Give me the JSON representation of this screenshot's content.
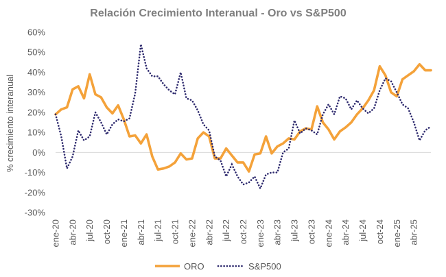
{
  "chart_data": {
    "type": "line",
    "title": "Relación Crecimiento Interanual - Oro vs S&P500",
    "xlabel": "",
    "ylabel": "% crecimiento interanual",
    "ylim": [
      -30,
      60
    ],
    "yticks": [
      "-30%",
      "-20%",
      "-10%",
      "0%",
      "10%",
      "20%",
      "30%",
      "40%",
      "50%",
      "60%"
    ],
    "ytick_values": [
      -30,
      -20,
      -10,
      0,
      10,
      20,
      30,
      40,
      50,
      60
    ],
    "xticks": [
      "ene-20",
      "abr-20",
      "jul-20",
      "oct-20",
      "ene-21",
      "abr-21",
      "jul-21",
      "oct-21",
      "ene-22",
      "abr-22",
      "jul-22",
      "oct-22",
      "ene-23",
      "abr-23",
      "jul-23",
      "oct-23",
      "ene-24",
      "abr-24",
      "jul-24",
      "oct-24",
      "ene-25",
      "abr-25"
    ],
    "legend_position": "bottom",
    "grid": false,
    "series": [
      {
        "name": "ORO",
        "color": "#f4a23a",
        "style": "solid",
        "values": [
          19,
          21.5,
          22.5,
          31.5,
          33,
          27,
          39,
          29,
          27.5,
          22.5,
          19.5,
          23.5,
          16.5,
          8,
          8.5,
          4.5,
          9,
          -2,
          -8.5,
          -8,
          -7,
          -5,
          -0.5,
          -3.5,
          -3,
          7,
          10,
          8,
          -3,
          -3,
          2,
          -1.5,
          -5,
          -5,
          -9.5,
          -1,
          -0.5,
          8,
          -0.5,
          3,
          4.5,
          7,
          6.5,
          10.5,
          12,
          11.5,
          23,
          15,
          11.5,
          6.5,
          10.5,
          12.5,
          15,
          19,
          22,
          26,
          31,
          43,
          38.5,
          30,
          28,
          36.5,
          38.5,
          40.5,
          44,
          41,
          41
        ]
      },
      {
        "name": "S&P500",
        "color": "#2e2a6e",
        "style": "dotted",
        "values": [
          19,
          8,
          -8,
          -2,
          11,
          6,
          8,
          20,
          15,
          9,
          14,
          16.5,
          15.5,
          17,
          29.5,
          54,
          42,
          38,
          38,
          34,
          31,
          29,
          40,
          27,
          26,
          21,
          14,
          11,
          -2,
          -4,
          -12,
          -6,
          -12,
          -16,
          -15,
          -12,
          -18,
          -11,
          -10,
          -10,
          0,
          2,
          16,
          9.5,
          12,
          11,
          9,
          19,
          24,
          19,
          28,
          27,
          21.5,
          26,
          22,
          19.5,
          22,
          31,
          37,
          35.5,
          30,
          24,
          22,
          15,
          6,
          11,
          13
        ]
      }
    ]
  }
}
